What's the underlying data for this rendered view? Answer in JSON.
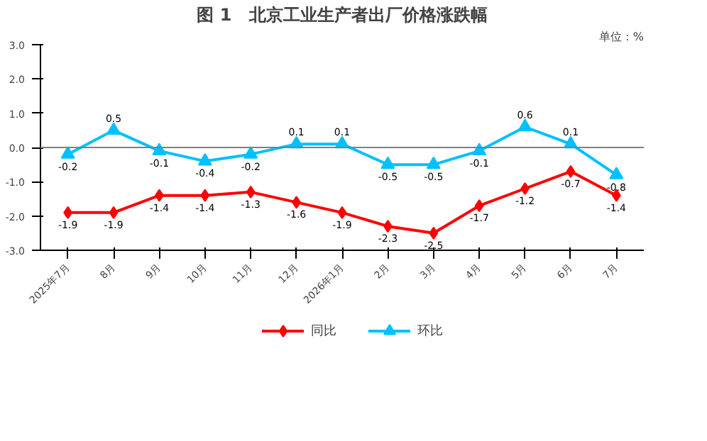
{
  "chart_data": {
    "type": "line",
    "title": "图 1　北京工业生产者出厂价格涨跌幅",
    "annotations": [
      "单位：%"
    ],
    "categories": [
      "2025年7月",
      "8月",
      "9月",
      "10月",
      "11月",
      "12月",
      "2026年1月",
      "2月",
      "3月",
      "4月",
      "5月",
      "6月",
      "7月"
    ],
    "series": [
      {
        "name": "同比",
        "color": "#ff0000",
        "marker": "diamond",
        "values": [
          -1.9,
          -1.9,
          -1.4,
          -1.4,
          -1.3,
          -1.6,
          -1.9,
          -2.3,
          -2.5,
          -1.7,
          -1.2,
          -0.7,
          -1.4
        ]
      },
      {
        "name": "环比",
        "color": "#00c0ff",
        "marker": "triangle",
        "values": [
          -0.2,
          0.5,
          -0.1,
          -0.4,
          -0.2,
          0.1,
          0.1,
          -0.5,
          -0.5,
          -0.1,
          0.6,
          0.1,
          -0.8
        ]
      }
    ],
    "ylim": [
      -3.0,
      3.0
    ],
    "yticks": [
      {
        "value": -3,
        "label": "-3.0"
      },
      {
        "value": -2,
        "label": "-2.0"
      },
      {
        "value": -1,
        "label": "-1.0"
      },
      {
        "value": 0,
        "label": "0.0"
      },
      {
        "value": 1,
        "label": "1.0"
      },
      {
        "value": 2,
        "label": "2.0"
      },
      {
        "value": 3,
        "label": "3.0"
      }
    ],
    "ref_lines": [
      {
        "axis": "y",
        "value": 0,
        "color": "#808080"
      }
    ],
    "data_labels": true,
    "grid": false,
    "legend": "bottom",
    "line_style": "solid"
  }
}
